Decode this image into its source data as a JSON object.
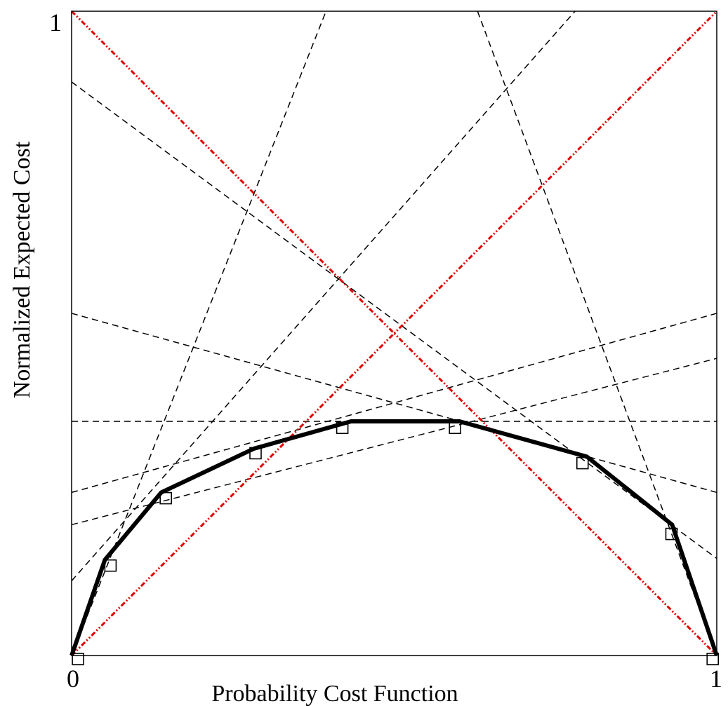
{
  "chart_data": {
    "type": "line",
    "title": "",
    "xlabel": "Probability Cost Function",
    "ylabel": "Normalized Expected Cost",
    "xlim": [
      0,
      1
    ],
    "ylim": [
      0,
      1
    ],
    "x_tick_labels": [
      "0",
      "1"
    ],
    "y_tick_labels": [
      "1"
    ],
    "grid": false,
    "legend": "none",
    "series": [
      {
        "style": "dashed",
        "color": "#000000",
        "lines": [
          {
            "x0": 0.0,
            "y0": 0.0,
            "x1": 0.3943,
            "y1": 1.0
          },
          {
            "x0": 0.0,
            "y0": 0.1159,
            "x1": 0.7804,
            "y1": 1.0
          },
          {
            "x0": 0.0,
            "y0": 0.8902,
            "x1": 1.0,
            "y1": 0.1507
          },
          {
            "x0": 0.0,
            "y0": 0.5311,
            "x1": 1.0,
            "y1": 0.2531
          },
          {
            "x0": 0.0,
            "y0": 0.3634,
            "x1": 1.0,
            "y1": 0.3634
          },
          {
            "x0": 0.0,
            "y0": 0.2531,
            "x1": 1.0,
            "y1": 0.5311
          },
          {
            "x0": 0.0,
            "y0": 0.203,
            "x1": 1.0,
            "y1": 0.4612
          },
          {
            "x0": 0.6292,
            "y0": 1.0,
            "x1": 1.0,
            "y1": 0.0
          }
        ]
      },
      {
        "style": "dash-dot",
        "color": "#e00000",
        "lines": [
          {
            "x0": 0.0,
            "y0": 1.0,
            "x1": 1.0,
            "y1": 0.0
          },
          {
            "x0": 0.0,
            "y0": 0.0,
            "x1": 1.0,
            "y1": 1.0
          }
        ]
      },
      {
        "name": "",
        "style": "solid",
        "color": "#000000",
        "points": [
          {
            "x": 0.0,
            "y": 0.0
          },
          {
            "x": 0.0516,
            "y": 0.1485
          },
          {
            "x": 0.1389,
            "y": 0.2531
          },
          {
            "x": 0.2829,
            "y": 0.3212
          },
          {
            "x": 0.4332,
            "y": 0.3634
          },
          {
            "x": 0.6012,
            "y": 0.3634
          },
          {
            "x": 0.7986,
            "y": 0.3087
          },
          {
            "x": 0.9308,
            "y": 0.203
          },
          {
            "x": 1.0,
            "y": 0.0
          }
        ]
      },
      {
        "style": "markers",
        "marker": "square",
        "points": [
          {
            "x": 0.0099,
            "y": -0.0054
          },
          {
            "x": 0.0603,
            "y": 0.1396
          },
          {
            "x": 0.146,
            "y": 0.2442
          },
          {
            "x": 0.2851,
            "y": 0.314
          },
          {
            "x": 0.4196,
            "y": 0.3534
          },
          {
            "x": 0.5943,
            "y": 0.3534
          },
          {
            "x": 0.7919,
            "y": 0.2986
          },
          {
            "x": 0.9298,
            "y": 0.1887
          },
          {
            "x": 0.9937,
            "y": -0.0054
          }
        ]
      }
    ]
  }
}
